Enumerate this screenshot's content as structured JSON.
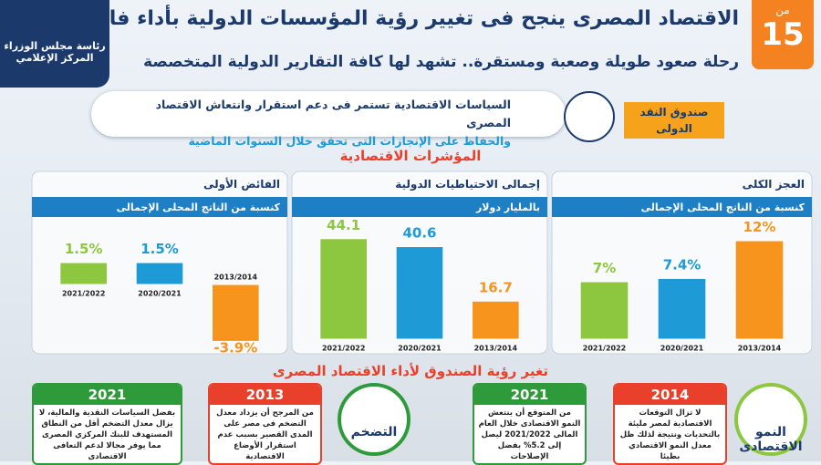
{
  "header": {
    "title": "الاقتصاد المصرى ينجح فى تغيير رؤية المؤسسات الدولية بأداء فاق التوقعات",
    "subtitle": "رحلة صعود طويلة وصعبة ومستقرة.. تشهد لها كافة التقارير الدولية المتخصصة",
    "page_label": "من",
    "page_number": "15",
    "logo_lines": [
      "رئاسة مجلس الوزراء",
      "المركز الإعلامي"
    ]
  },
  "banner": {
    "source": "صندوق النقد الدولى",
    "text_lines": [
      "السياسات الاقتصادية تستمر فى دعم استقرار وانتعاش الاقتصاد المصرى",
      "والحفاظ على الإنجازات التى تحقق خلال السنوات الماضية"
    ]
  },
  "indicators_title": "المؤشرات الاقتصادية",
  "chart_data": [
    {
      "type": "bar",
      "title": "العجز الكلى",
      "subtitle": "كنسبة من الناتج المحلى الإجمالى",
      "categories": [
        "2021/2022",
        "2020/2021",
        "2013/2014"
      ],
      "values": [
        7,
        7.4,
        12
      ],
      "value_labels": [
        "7%",
        "7.4%",
        "12%"
      ],
      "colors": [
        "#8dc63f",
        "#1e9ad6",
        "#f7941d"
      ]
    },
    {
      "type": "bar",
      "title": "إجمالى الاحتياطيات الدولية",
      "subtitle": "بالمليار دولار",
      "categories": [
        "2021/2022",
        "2020/2021",
        "2013/2014"
      ],
      "values": [
        44.1,
        40.6,
        16.7
      ],
      "value_labels": [
        "44.1",
        "40.6",
        "16.7"
      ],
      "colors": [
        "#8dc63f",
        "#1e9ad6",
        "#f7941d"
      ]
    },
    {
      "type": "bar",
      "title": "الفائض الأولى",
      "subtitle": "كنسبة من الناتج المحلى الإجمالى",
      "categories": [
        "2021/2022",
        "2020/2021",
        "2013/2014"
      ],
      "values": [
        1.5,
        1.5,
        -3.9
      ],
      "value_labels": [
        "1.5%",
        "1.5%",
        "-3.9%"
      ],
      "colors": [
        "#8dc63f",
        "#1e9ad6",
        "#f7941d"
      ]
    }
  ],
  "outlook_title": "تغير رؤية الصندوق لأداء الاقتصاد المصرى",
  "outlook": [
    {
      "topic": "النمو الاقتصادى",
      "cards": [
        {
          "year": "2014",
          "text": "لا تزال التوقعات الاقتصادية لمصر مليئة بالتحديات ونتيجة لذلك ظل معدل النمو الاقتصادي بطيئا"
        },
        {
          "year": "2021",
          "text": "من المتوقع أن ينتعش النمو الاقتصادى خلال العام المالى 2021/2022 ليصل إلى 5.2% بفضل الإصلاحات"
        }
      ]
    },
    {
      "topic": "التضخم",
      "cards": [
        {
          "year": "2013",
          "text": "من المرجح أن يزداد معدل التضخم فى مصر على المدى القصير بسبب عدم استقرار الأوضاع الاقتصادية"
        },
        {
          "year": "2021",
          "text": "بفضل السياسات النقدية والمالية، لا يزال معدل التضخم أقل من النطاق المستهدف للبنك المركزي المصرى مما يوفر مجالا لدعم التعافى الاقتصادى"
        }
      ]
    }
  ]
}
